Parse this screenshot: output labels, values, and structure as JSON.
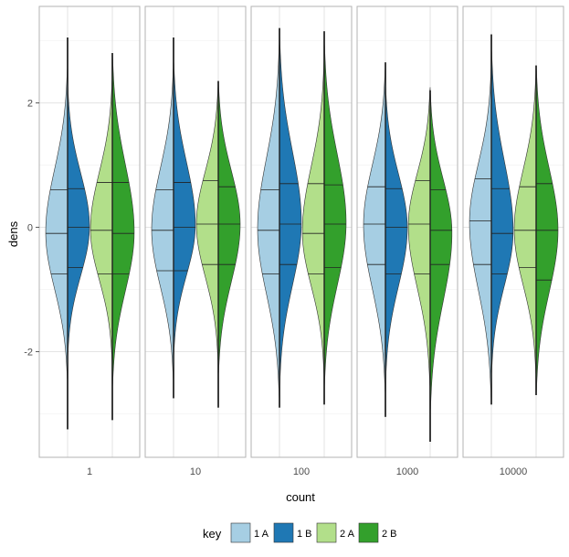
{
  "chart_data": {
    "type": "violin",
    "xlabel": "count",
    "ylabel": "dens",
    "ylim": [
      -3.7,
      3.55
    ],
    "y_ticks": [
      -2,
      0,
      2
    ],
    "y_tick_labels": [
      "-2",
      "0",
      "2"
    ],
    "facets": [
      "1",
      "10",
      "100",
      "1000",
      "10000"
    ],
    "x_groups": [
      "1",
      "2"
    ],
    "legend": {
      "title": "key",
      "position": "bottom",
      "entries": [
        {
          "label": "1 A",
          "color": "#a6cee3"
        },
        {
          "label": "1 B",
          "color": "#1f78b4"
        },
        {
          "label": "2 A",
          "color": "#b2df8a"
        },
        {
          "label": "2 B",
          "color": "#33a02c"
        }
      ]
    },
    "violins": [
      {
        "facet": "1",
        "group": "1",
        "A": {
          "range": [
            -2.5,
            2.6
          ],
          "quantiles": [
            -0.75,
            -0.1,
            0.6
          ]
        },
        "B": {
          "range": [
            -2.1,
            2.3
          ],
          "quantiles": [
            -0.65,
            0.0,
            0.62
          ]
        },
        "line_range": [
          -3.25,
          3.05
        ]
      },
      {
        "facet": "1",
        "group": "2",
        "A": {
          "range": [
            -2.2,
            2.4
          ],
          "quantiles": [
            -0.75,
            -0.05,
            0.72
          ]
        },
        "B": {
          "range": [
            -2.6,
            2.8
          ],
          "quantiles": [
            -0.75,
            -0.1,
            0.72
          ]
        },
        "line_range": [
          -3.1,
          2.8
        ]
      },
      {
        "facet": "10",
        "group": "1",
        "A": {
          "range": [
            -2.5,
            2.6
          ],
          "quantiles": [
            -0.7,
            -0.05,
            0.6
          ]
        },
        "B": {
          "range": [
            -2.1,
            2.7
          ],
          "quantiles": [
            -0.7,
            0.0,
            0.72
          ]
        },
        "line_range": [
          -2.75,
          3.05
        ]
      },
      {
        "facet": "10",
        "group": "2",
        "A": {
          "range": [
            -2.2,
            2.3
          ],
          "quantiles": [
            -0.6,
            0.05,
            0.75
          ]
        },
        "B": {
          "range": [
            -2.4,
            2.35
          ],
          "quantiles": [
            -0.6,
            0.05,
            0.65
          ]
        },
        "line_range": [
          -2.9,
          2.35
        ]
      },
      {
        "facet": "100",
        "group": "1",
        "A": {
          "range": [
            -2.8,
            3.0
          ],
          "quantiles": [
            -0.75,
            -0.05,
            0.6
          ]
        },
        "B": {
          "range": [
            -2.6,
            3.1
          ],
          "quantiles": [
            -0.6,
            0.05,
            0.7
          ]
        },
        "line_range": [
          -2.9,
          3.2
        ]
      },
      {
        "facet": "100",
        "group": "2",
        "A": {
          "range": [
            -2.4,
            2.7
          ],
          "quantiles": [
            -0.75,
            -0.1,
            0.7
          ]
        },
        "B": {
          "range": [
            -2.6,
            3.0
          ],
          "quantiles": [
            -0.65,
            0.05,
            0.68
          ]
        },
        "line_range": [
          -2.85,
          3.15
        ]
      },
      {
        "facet": "1000",
        "group": "1",
        "A": {
          "range": [
            -2.7,
            2.6
          ],
          "quantiles": [
            -0.6,
            0.05,
            0.65
          ]
        },
        "B": {
          "range": [
            -2.5,
            2.3
          ],
          "quantiles": [
            -0.75,
            0.0,
            0.62
          ]
        },
        "line_range": [
          -3.05,
          2.65
        ]
      },
      {
        "facet": "1000",
        "group": "2",
        "A": {
          "range": [
            -2.6,
            2.25
          ],
          "quantiles": [
            -0.75,
            0.05,
            0.75
          ]
        },
        "B": {
          "range": [
            -3.0,
            2.2
          ],
          "quantiles": [
            -0.6,
            -0.05,
            0.6
          ]
        },
        "line_range": [
          -3.45,
          2.2
        ]
      },
      {
        "facet": "10000",
        "group": "1",
        "A": {
          "range": [
            -2.8,
            2.6
          ],
          "quantiles": [
            -0.6,
            0.1,
            0.78
          ]
        },
        "B": {
          "range": [
            -2.4,
            2.9
          ],
          "quantiles": [
            -0.75,
            -0.1,
            0.62
          ]
        },
        "line_range": [
          -2.85,
          3.1
        ]
      },
      {
        "facet": "10000",
        "group": "2",
        "A": {
          "range": [
            -2.4,
            2.5
          ],
          "quantiles": [
            -0.65,
            -0.05,
            0.65
          ]
        },
        "B": {
          "range": [
            -2.7,
            2.6
          ],
          "quantiles": [
            -0.85,
            -0.05,
            0.7
          ]
        },
        "line_range": [
          -2.7,
          2.6
        ]
      }
    ]
  }
}
